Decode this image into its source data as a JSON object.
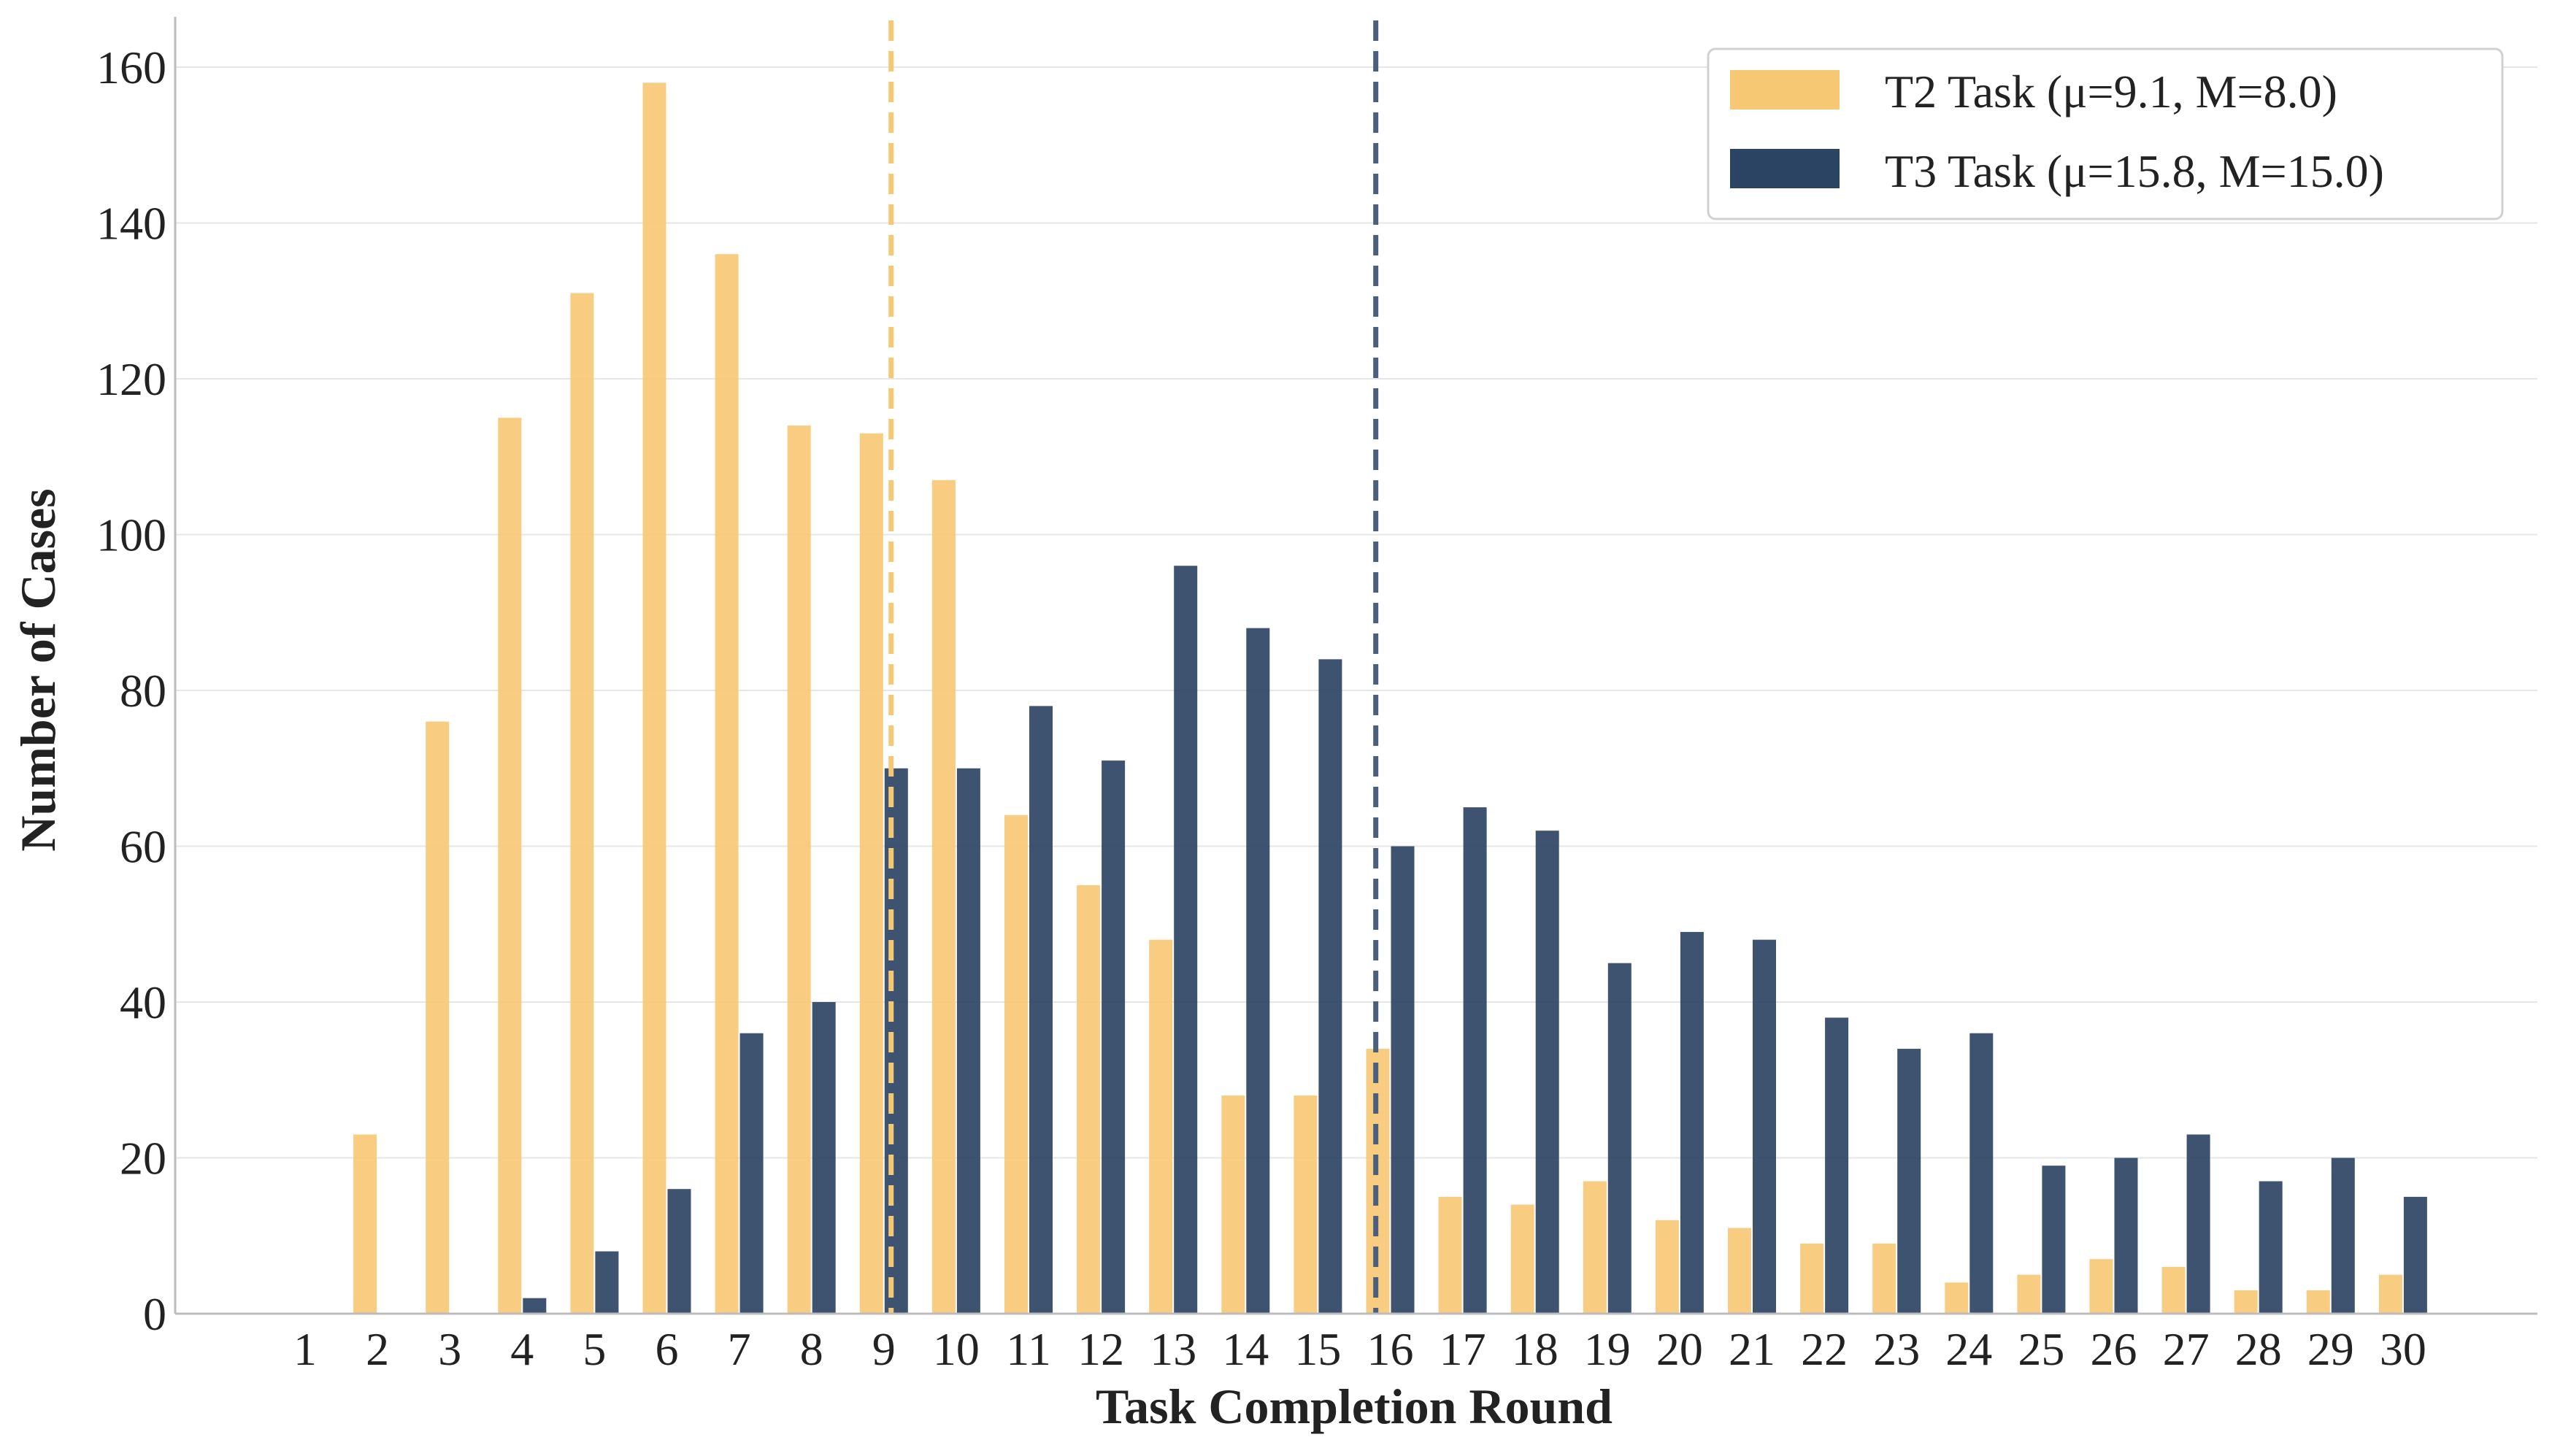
{
  "chart_data": {
    "type": "bar",
    "title": "",
    "xlabel": "Task Completion Round",
    "ylabel": "Number of Cases",
    "ylim": [
      0,
      166
    ],
    "yticks": [
      0,
      20,
      40,
      60,
      80,
      100,
      120,
      140,
      160
    ],
    "grid": "horizontal",
    "legend_position": "top-right",
    "categories": [
      "1",
      "2",
      "3",
      "4",
      "5",
      "6",
      "7",
      "8",
      "9",
      "10",
      "11",
      "12",
      "13",
      "14",
      "15",
      "16",
      "17",
      "18",
      "19",
      "20",
      "21",
      "22",
      "23",
      "24",
      "25",
      "26",
      "27",
      "28",
      "29",
      "30"
    ],
    "series": [
      {
        "name": "T2 Task",
        "legend_label": "T2 Task  (μ=9.1, M=8.0)",
        "color": "#F7C873",
        "values": [
          0,
          23,
          76,
          115,
          131,
          158,
          136,
          114,
          113,
          107,
          64,
          55,
          48,
          28,
          28,
          34,
          15,
          14,
          17,
          12,
          11,
          9,
          9,
          4,
          5,
          7,
          6,
          3,
          3,
          5
        ],
        "mean": 9.1,
        "median": 8.0
      },
      {
        "name": "T3 Task",
        "legend_label": "T3 Task  (μ=15.8, M=15.0)",
        "color": "#2C4463",
        "values": [
          0,
          0,
          0,
          2,
          8,
          16,
          36,
          40,
          70,
          70,
          78,
          71,
          96,
          88,
          84,
          60,
          65,
          62,
          45,
          49,
          48,
          38,
          34,
          36,
          19,
          20,
          23,
          17,
          20,
          15
        ],
        "mean": 15.8,
        "median": 15.0
      }
    ],
    "reference_lines": [
      {
        "series": "T2 Task",
        "x": 9.1,
        "style": "dashed",
        "color": "#F7C873"
      },
      {
        "series": "T3 Task",
        "x": 15.8,
        "style": "dashed",
        "color": "#4A5F7E"
      }
    ]
  }
}
